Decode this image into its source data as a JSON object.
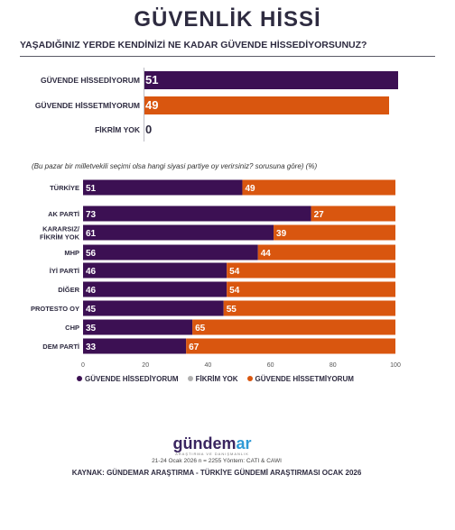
{
  "title": "GÜVENLİK HİSSİ",
  "question": "YAŞADIĞINIZ YERDE KENDİNİZİ NE KADAR GÜVENDE HİSSEDİYORSUNUZ?",
  "top_bars": [
    {
      "label": "GÜVENDE HİSSEDİYORUM",
      "value": 51,
      "color": "#3c1053"
    },
    {
      "label": "GÜVENDE HİSSETMİYORUM",
      "value": 49,
      "color": "#d9560f"
    },
    {
      "label": "FİKRİM YOK",
      "value": 0,
      "color": "#b0b0b0"
    }
  ],
  "subnote": "(Bu pazar bir milletvekili seçimi olsa hangi siyasi partiye oy verirsiniz? sorusuna göre) (%)",
  "colors": {
    "purple": "#3c1053",
    "gray": "#b0b0b0",
    "orange": "#d9560f"
  },
  "chart_data": {
    "type": "bar",
    "stacked": true,
    "orientation": "horizontal",
    "categories": [
      "TÜRKİYE",
      "AK PARTİ",
      "KARARSIZ/\nFİKRİM YOK",
      "MHP",
      "İYİ PARTİ",
      "DİĞER",
      "PROTESTO OY",
      "CHP",
      "DEM PARTİ"
    ],
    "series": [
      {
        "name": "GÜVENDE HİSSEDİYORUM",
        "values": [
          51,
          73,
          61,
          56,
          46,
          46,
          45,
          35,
          33
        ],
        "color": "#3c1053"
      },
      {
        "name": "FİKRİM YOK",
        "values": [
          0,
          0,
          0,
          0,
          0,
          0,
          0,
          0,
          0
        ],
        "color": "#b0b0b0"
      },
      {
        "name": "GÜVENDE HİSSETMİYORUM",
        "values": [
          49,
          27,
          39,
          44,
          54,
          54,
          55,
          65,
          67
        ],
        "color": "#d9560f"
      }
    ],
    "xlim": [
      0,
      100
    ],
    "xticks": [
      0,
      20,
      40,
      60,
      80,
      100
    ],
    "legend_position": "bottom",
    "grid": false
  },
  "logo": {
    "main_a": "gündem",
    "main_b": "ar",
    "sub": "ARAŞTIRMA VE DANIŞMANLIK"
  },
  "method": "21-24 Ocak 2026 n = 2255 Yöntem: CATI & CAWI",
  "source": "KAYNAK: GÜNDEMAR ARAŞTIRMA - TÜRKİYE GÜNDEMİ ARAŞTIRMASI OCAK 2026"
}
